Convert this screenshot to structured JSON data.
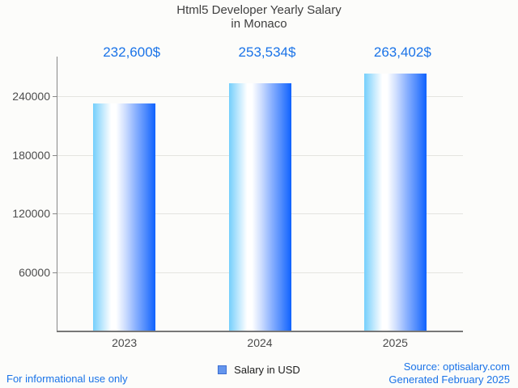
{
  "page": {
    "background": "#fcfcfa"
  },
  "chart_data": {
    "type": "bar",
    "title": "Html5 Developer Yearly Salary in Monaco",
    "title_lines": [
      "Html5 Developer Yearly Salary",
      "in Monaco"
    ],
    "categories": [
      "2023",
      "2024",
      "2025"
    ],
    "series": [
      {
        "name": "Salary in USD",
        "values": [
          232600,
          253534,
          263402
        ]
      }
    ],
    "value_labels": [
      "232,600$",
      "253,534$",
      "263,402$"
    ],
    "yticks": [
      60000,
      120000,
      180000,
      240000
    ],
    "ylim": [
      0,
      280000
    ],
    "xlabel": "",
    "ylabel": "",
    "grid": true,
    "legend_position": "bottom"
  },
  "colors": {
    "accent_blue": "#1a73e8",
    "title_gray": "#3f3f3f",
    "bar_gradient_light": "#74cffc",
    "bar_gradient_dark": "#0f62fe",
    "legend_swatch_fill": "#6495ed",
    "legend_swatch_border": "#3c6fd1",
    "gridline": "#e4e4e0",
    "axis": "#808080"
  },
  "footer": {
    "left": "For informational use only",
    "source": "Source: optisalary.com",
    "generated": "Generated February 2025"
  }
}
